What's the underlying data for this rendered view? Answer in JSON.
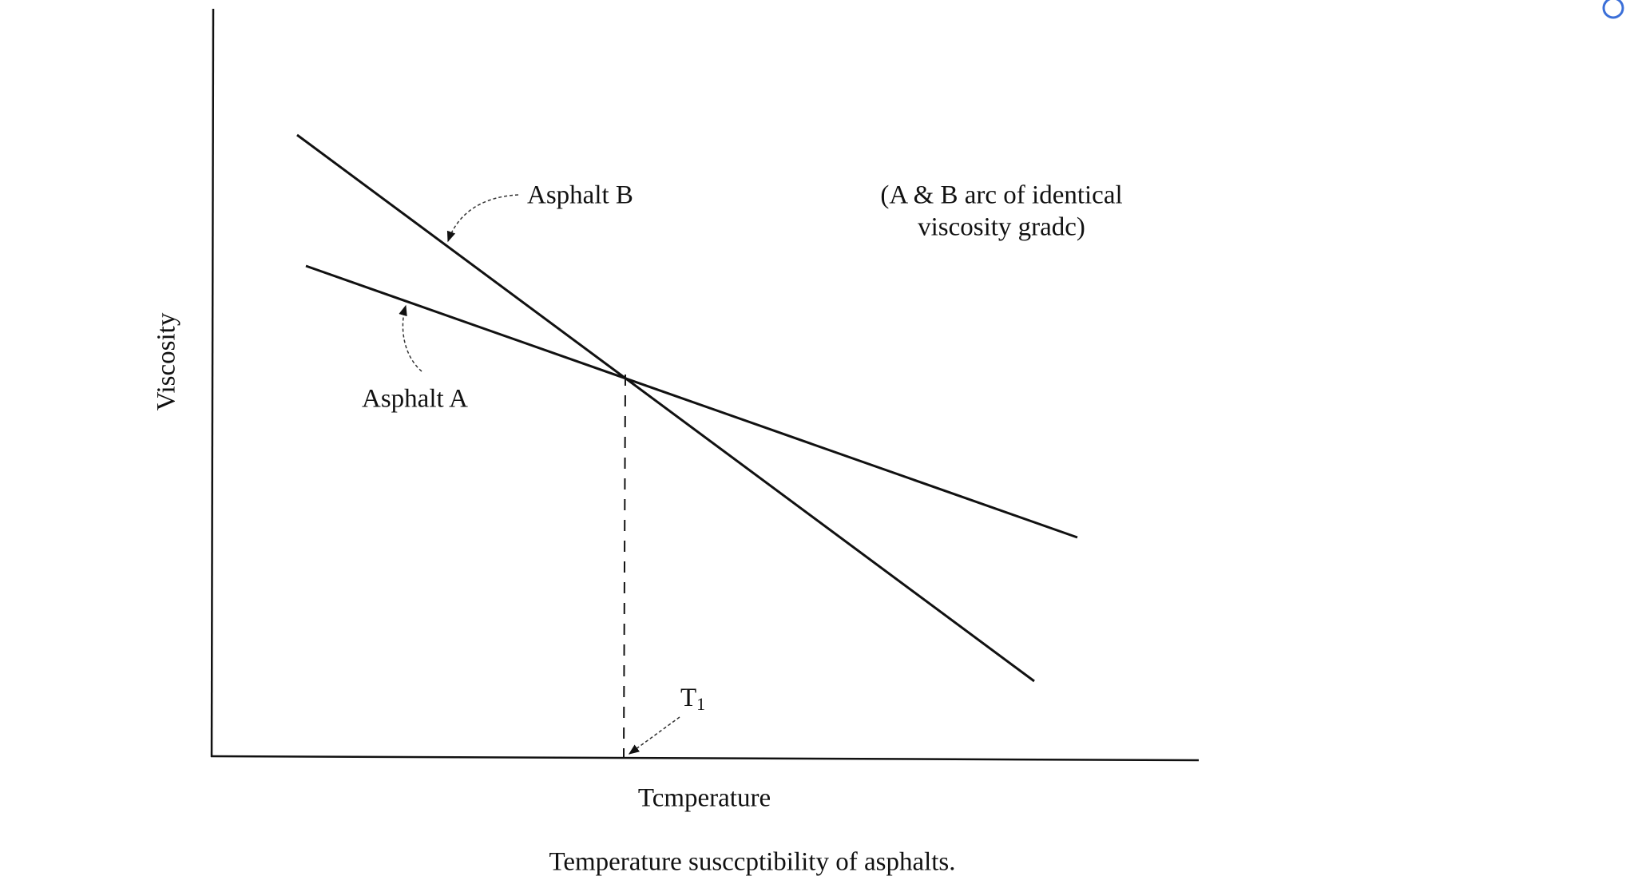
{
  "y_axis_label": "Viscosity",
  "x_axis_label": "Tcmperature",
  "curves": [
    {
      "label": "Asphalt B"
    },
    {
      "label": "Asphalt A"
    }
  ],
  "note": [
    "(A & B arc of identical",
    "viscosity gradc)"
  ],
  "marker": {
    "label": "T",
    "subscript": "1"
  },
  "caption": "Temperature susccptibility of asphalts."
}
